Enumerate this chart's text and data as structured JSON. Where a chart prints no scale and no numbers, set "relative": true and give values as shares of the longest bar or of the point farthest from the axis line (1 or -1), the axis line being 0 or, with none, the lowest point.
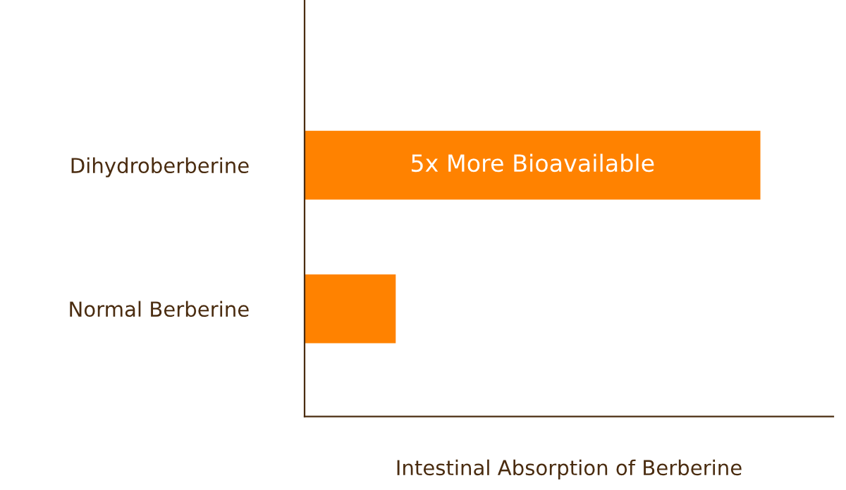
{
  "chart_data": {
    "type": "bar",
    "orientation": "horizontal",
    "relative": true,
    "categories": [
      "Dihydroberberine",
      "Normal Berberine"
    ],
    "values": [
      1,
      0.2
    ],
    "color": "#ff8200",
    "xlabel": "Intestinal Absorption of Berberine",
    "annotations": [
      "5x More Bioavailable"
    ],
    "grid": false,
    "legend": false
  }
}
